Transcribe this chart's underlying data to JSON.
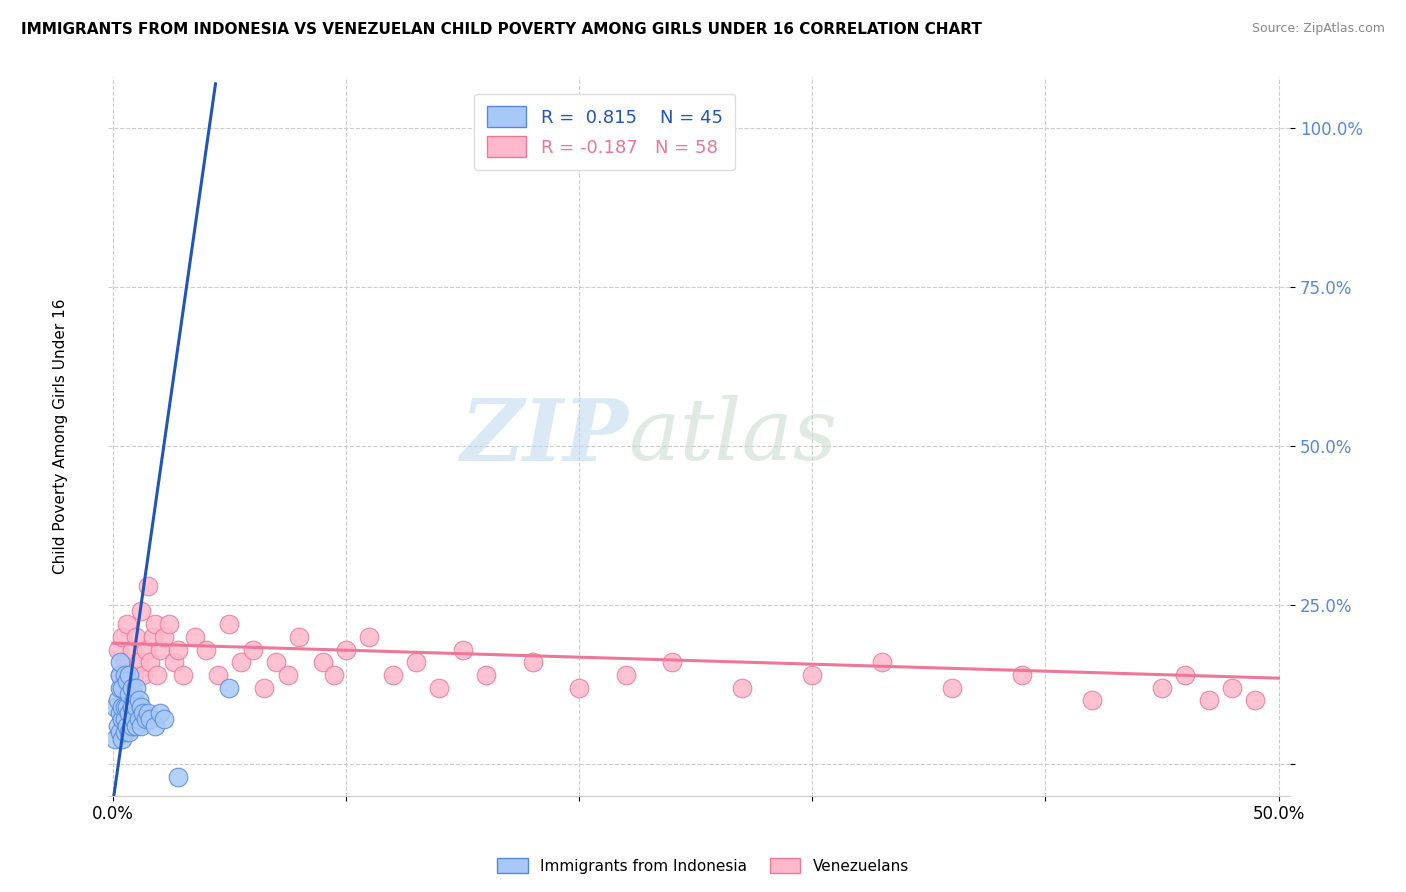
{
  "title": "IMMIGRANTS FROM INDONESIA VS VENEZUELAN CHILD POVERTY AMONG GIRLS UNDER 16 CORRELATION CHART",
  "source": "Source: ZipAtlas.com",
  "ylabel": "Child Poverty Among Girls Under 16",
  "series1_name": "Immigrants from Indonesia",
  "series1_color": "#A8C8F8",
  "series1_edge_color": "#5588DD",
  "series1_line_color": "#2255BB",
  "series1_R": 0.815,
  "series1_N": 45,
  "series2_name": "Venezuelans",
  "series2_color": "#FFB8CC",
  "series2_edge_color": "#EE7799",
  "series2_line_color": "#EE7799",
  "series2_R": -0.187,
  "series2_N": 58,
  "watermark_zip": "ZIP",
  "watermark_atlas": "atlas",
  "background_color": "#FFFFFF",
  "xlim": [
    -0.002,
    0.505
  ],
  "ylim": [
    -0.05,
    1.08
  ],
  "ytick_color": "#5588DD",
  "series1_x": [
    0.001,
    0.001,
    0.002,
    0.002,
    0.003,
    0.003,
    0.003,
    0.003,
    0.003,
    0.004,
    0.004,
    0.004,
    0.004,
    0.005,
    0.005,
    0.005,
    0.005,
    0.006,
    0.006,
    0.006,
    0.007,
    0.007,
    0.007,
    0.007,
    0.008,
    0.008,
    0.008,
    0.009,
    0.009,
    0.01,
    0.01,
    0.01,
    0.011,
    0.011,
    0.012,
    0.012,
    0.013,
    0.014,
    0.015,
    0.016,
    0.018,
    0.02,
    0.022,
    0.028,
    0.05
  ],
  "series1_y": [
    0.04,
    0.09,
    0.06,
    0.1,
    0.05,
    0.08,
    0.12,
    0.14,
    0.16,
    0.04,
    0.07,
    0.09,
    0.12,
    0.05,
    0.07,
    0.09,
    0.14,
    0.06,
    0.09,
    0.13,
    0.05,
    0.08,
    0.11,
    0.14,
    0.06,
    0.09,
    0.12,
    0.07,
    0.1,
    0.06,
    0.09,
    0.12,
    0.07,
    0.1,
    0.06,
    0.09,
    0.08,
    0.07,
    0.08,
    0.07,
    0.06,
    0.08,
    0.07,
    -0.02,
    0.12
  ],
  "series2_x": [
    0.002,
    0.003,
    0.004,
    0.005,
    0.006,
    0.007,
    0.008,
    0.009,
    0.01,
    0.011,
    0.012,
    0.013,
    0.014,
    0.015,
    0.016,
    0.017,
    0.018,
    0.019,
    0.02,
    0.022,
    0.024,
    0.026,
    0.028,
    0.03,
    0.035,
    0.04,
    0.045,
    0.05,
    0.055,
    0.06,
    0.065,
    0.07,
    0.075,
    0.08,
    0.09,
    0.095,
    0.1,
    0.11,
    0.12,
    0.13,
    0.14,
    0.15,
    0.16,
    0.18,
    0.2,
    0.22,
    0.24,
    0.27,
    0.3,
    0.33,
    0.36,
    0.39,
    0.42,
    0.45,
    0.46,
    0.47,
    0.48,
    0.49
  ],
  "series2_y": [
    0.18,
    0.14,
    0.2,
    0.16,
    0.22,
    0.12,
    0.18,
    0.14,
    0.2,
    0.16,
    0.24,
    0.14,
    0.18,
    0.28,
    0.16,
    0.2,
    0.22,
    0.14,
    0.18,
    0.2,
    0.22,
    0.16,
    0.18,
    0.14,
    0.2,
    0.18,
    0.14,
    0.22,
    0.16,
    0.18,
    0.12,
    0.16,
    0.14,
    0.2,
    0.16,
    0.14,
    0.18,
    0.2,
    0.14,
    0.16,
    0.12,
    0.18,
    0.14,
    0.16,
    0.12,
    0.14,
    0.16,
    0.12,
    0.14,
    0.16,
    0.12,
    0.14,
    0.1,
    0.12,
    0.14,
    0.1,
    0.12,
    0.1
  ],
  "trend1_x0": 0.0,
  "trend1_y0": -0.06,
  "trend1_x1": 0.044,
  "trend1_y1": 1.07,
  "trend2_x0": 0.0,
  "trend2_y0": 0.19,
  "trend2_x1": 0.5,
  "trend2_y1": 0.135
}
